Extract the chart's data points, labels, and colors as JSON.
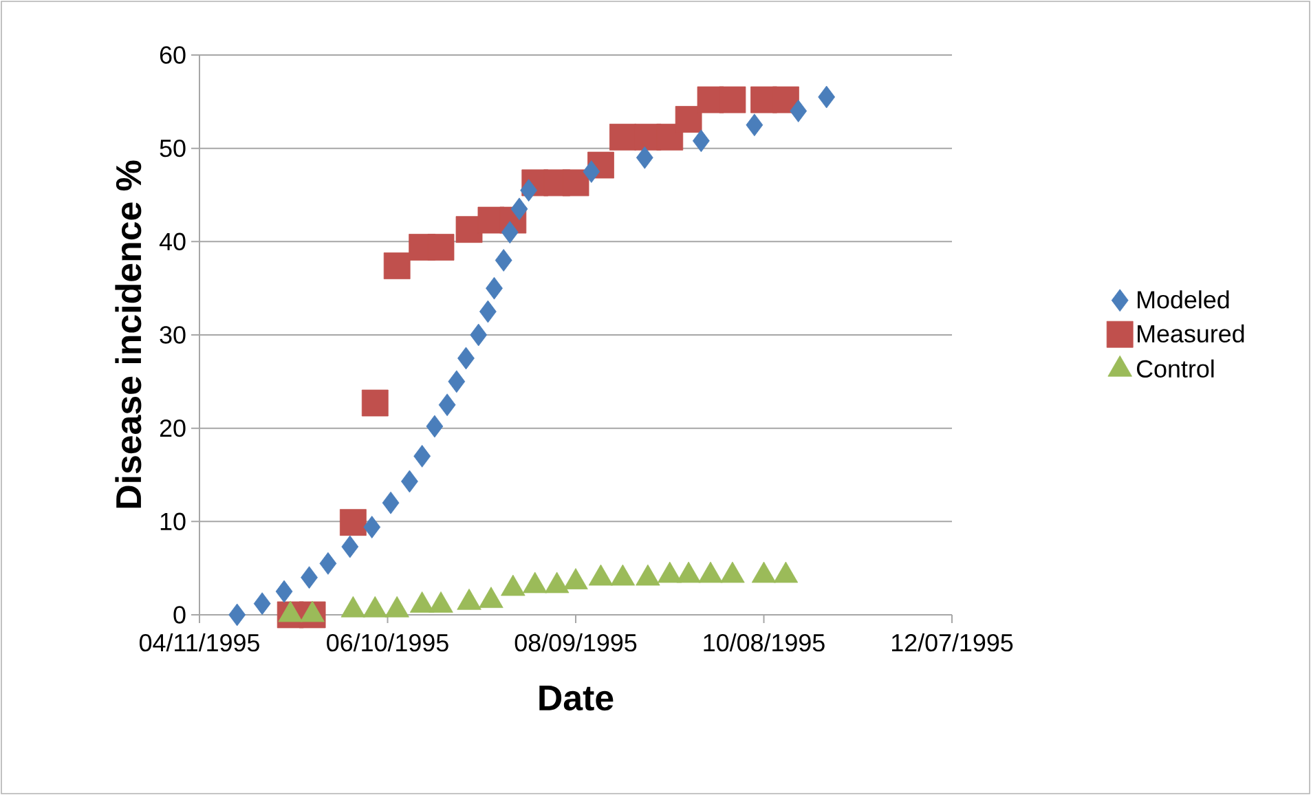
{
  "chart_data": {
    "type": "scatter",
    "xlabel": "Date",
    "ylabel": "Disease incidence %",
    "xlim": [
      "1995-04-11",
      "1995-12-07"
    ],
    "xticks": [
      {
        "value": "1995-04-11",
        "label": "04/11/1995"
      },
      {
        "value": "1995-06-10",
        "label": "06/10/1995"
      },
      {
        "value": "1995-08-09",
        "label": "08/09/1995"
      },
      {
        "value": "1995-10-08",
        "label": "10/08/1995"
      },
      {
        "value": "1995-12-07",
        "label": "12/07/1995"
      }
    ],
    "ylim": [
      0,
      60
    ],
    "yticks": [
      0,
      10,
      20,
      30,
      40,
      50,
      60
    ],
    "grid": "y",
    "legend": "right",
    "series": [
      {
        "name": "Modeled",
        "color": "#4a7ebb",
        "marker": "diamond",
        "x": [
          "1995-04-23",
          "1995-05-01",
          "1995-05-08",
          "1995-05-16",
          "1995-05-22",
          "1995-05-29",
          "1995-06-05",
          "1995-06-11",
          "1995-06-17",
          "1995-06-21",
          "1995-06-25",
          "1995-06-29",
          "1995-07-02",
          "1995-07-05",
          "1995-07-09",
          "1995-07-12",
          "1995-07-14",
          "1995-07-17",
          "1995-07-19",
          "1995-07-22",
          "1995-07-25",
          "1995-08-14",
          "1995-08-31",
          "1995-09-18",
          "1995-10-05",
          "1995-10-19",
          "1995-10-28"
        ],
        "values": [
          0,
          1.2,
          2.5,
          4,
          5.5,
          7.3,
          9.4,
          12,
          14.3,
          17,
          20.2,
          22.5,
          25,
          27.5,
          30,
          32.5,
          35,
          38,
          41,
          43.5,
          45.5,
          47.5,
          49,
          50.8,
          52.5,
          54,
          55.5
        ]
      },
      {
        "name": "Measured",
        "color": "#c0504d",
        "marker": "square",
        "x": [
          "1995-05-10",
          "1995-05-17",
          "1995-05-30",
          "1995-06-06",
          "1995-06-13",
          "1995-06-21",
          "1995-06-27",
          "1995-07-06",
          "1995-07-13",
          "1995-07-20",
          "1995-07-27",
          "1995-08-03",
          "1995-08-09",
          "1995-08-17",
          "1995-08-24",
          "1995-09-01",
          "1995-09-08",
          "1995-09-14",
          "1995-09-21",
          "1995-09-28",
          "1995-10-08",
          "1995-10-15"
        ],
        "values": [
          0,
          0,
          9.9,
          22.7,
          37.4,
          39.4,
          39.4,
          41.3,
          42.3,
          42.3,
          46.3,
          46.3,
          46.3,
          48.2,
          51.2,
          51.2,
          51.2,
          53.1,
          55.2,
          55.2,
          55.2,
          55.2
        ]
      },
      {
        "name": "Control",
        "color": "#9bbb59",
        "marker": "triangle",
        "x": [
          "1995-05-10",
          "1995-05-17",
          "1995-05-30",
          "1995-06-06",
          "1995-06-13",
          "1995-06-21",
          "1995-06-27",
          "1995-07-06",
          "1995-07-13",
          "1995-07-20",
          "1995-07-27",
          "1995-08-03",
          "1995-08-09",
          "1995-08-17",
          "1995-08-24",
          "1995-09-01",
          "1995-09-08",
          "1995-09-14",
          "1995-09-21",
          "1995-09-28",
          "1995-10-08",
          "1995-10-15"
        ],
        "values": [
          0,
          0,
          0.5,
          0.5,
          0.5,
          1.0,
          1.0,
          1.3,
          1.5,
          2.8,
          3.1,
          3.1,
          3.5,
          3.9,
          3.9,
          3.9,
          4.2,
          4.2,
          4.2,
          4.2,
          4.2,
          4.2
        ]
      }
    ]
  }
}
